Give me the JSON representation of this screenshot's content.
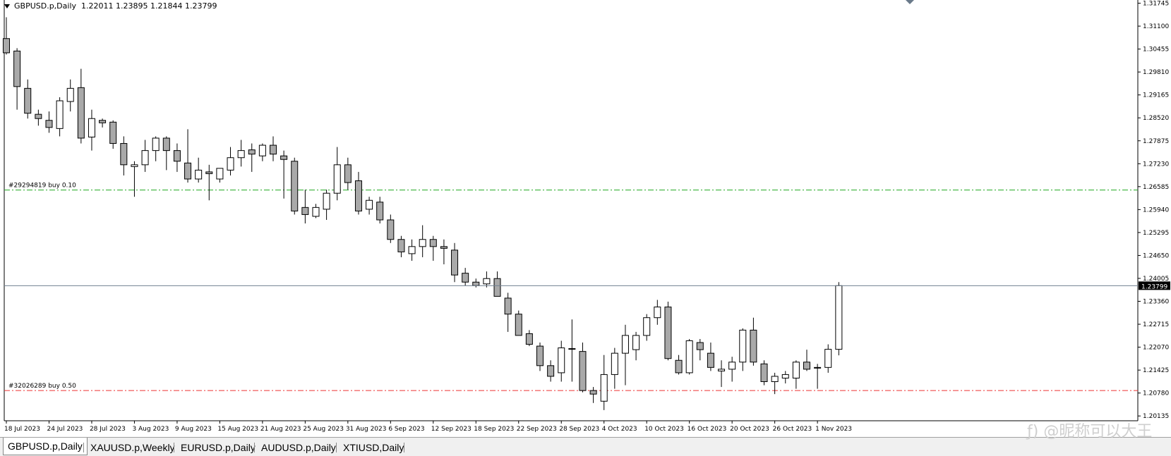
{
  "window": {
    "symbol_title": "GBPUSD.p,Daily",
    "ohlc_text": "1.22011 1.23895 1.21844 1.23799"
  },
  "price_axis": {
    "labels": [
      "1.31745",
      "1.31100",
      "1.30455",
      "1.29810",
      "1.29165",
      "1.28520",
      "1.27875",
      "1.27230",
      "1.26585",
      "1.25940",
      "1.25295",
      "1.24650",
      "1.24005",
      "1.23360",
      "1.22715",
      "1.22070",
      "1.21425",
      "1.20780",
      "1.20135"
    ],
    "current_price_label": "1.23799",
    "current_price_color": "#000000",
    "line_color": "#708090"
  },
  "time_axis": {
    "labels": [
      "18 Jul 2023",
      "24 Jul 2023",
      "28 Jul 2023",
      "3 Aug 2023",
      "9 Aug 2023",
      "15 Aug 2023",
      "21 Aug 2023",
      "25 Aug 2023",
      "31 Aug 2023",
      "6 Sep 2023",
      "12 Sep 2023",
      "18 Sep 2023",
      "22 Sep 2023",
      "28 Sep 2023",
      "4 Oct 2023",
      "10 Oct 2023",
      "16 Oct 2023",
      "20 Oct 2023",
      "26 Oct 2023",
      "1 Nov 2023"
    ]
  },
  "order_lines": [
    {
      "label": "#29294819 buy 0.10",
      "price": 1.2649,
      "color": "#22aa22"
    },
    {
      "label": "#32026289 buy 0.50",
      "price": 1.2085,
      "color": "#ee3333"
    }
  ],
  "chart_data": {
    "type": "candlestick",
    "title": "GBPUSD.p,Daily",
    "ylim": [
      1.2006,
      1.319
    ],
    "bull_color": "#ffffff",
    "bear_color": "#a9a9a9",
    "grid": false,
    "candles": [
      {
        "o": 1.3075,
        "h": 1.3135,
        "l": 1.303,
        "c": 1.3035
      },
      {
        "o": 1.304,
        "h": 1.3048,
        "l": 1.2875,
        "c": 1.294
      },
      {
        "o": 1.2935,
        "h": 1.296,
        "l": 1.285,
        "c": 1.2865
      },
      {
        "o": 1.2862,
        "h": 1.2875,
        "l": 1.283,
        "c": 1.285
      },
      {
        "o": 1.2845,
        "h": 1.287,
        "l": 1.281,
        "c": 1.2825
      },
      {
        "o": 1.2822,
        "h": 1.291,
        "l": 1.28,
        "c": 1.29
      },
      {
        "o": 1.2898,
        "h": 1.296,
        "l": 1.287,
        "c": 1.2935
      },
      {
        "o": 1.2937,
        "h": 1.299,
        "l": 1.278,
        "c": 1.2795
      },
      {
        "o": 1.2798,
        "h": 1.2875,
        "l": 1.276,
        "c": 1.285
      },
      {
        "o": 1.2845,
        "h": 1.285,
        "l": 1.2825,
        "c": 1.2838
      },
      {
        "o": 1.284,
        "h": 1.2845,
        "l": 1.2765,
        "c": 1.278
      },
      {
        "o": 1.278,
        "h": 1.28,
        "l": 1.269,
        "c": 1.272
      },
      {
        "o": 1.2715,
        "h": 1.273,
        "l": 1.263,
        "c": 1.272
      },
      {
        "o": 1.272,
        "h": 1.279,
        "l": 1.27,
        "c": 1.276
      },
      {
        "o": 1.276,
        "h": 1.28,
        "l": 1.273,
        "c": 1.2795
      },
      {
        "o": 1.2795,
        "h": 1.28,
        "l": 1.2705,
        "c": 1.276
      },
      {
        "o": 1.276,
        "h": 1.278,
        "l": 1.27,
        "c": 1.273
      },
      {
        "o": 1.2725,
        "h": 1.282,
        "l": 1.267,
        "c": 1.268
      },
      {
        "o": 1.268,
        "h": 1.274,
        "l": 1.267,
        "c": 1.2705
      },
      {
        "o": 1.27,
        "h": 1.272,
        "l": 1.262,
        "c": 1.2695
      },
      {
        "o": 1.268,
        "h": 1.271,
        "l": 1.267,
        "c": 1.271
      },
      {
        "o": 1.2705,
        "h": 1.277,
        "l": 1.269,
        "c": 1.274
      },
      {
        "o": 1.274,
        "h": 1.279,
        "l": 1.2715,
        "c": 1.276
      },
      {
        "o": 1.2762,
        "h": 1.278,
        "l": 1.27,
        "c": 1.275
      },
      {
        "o": 1.2745,
        "h": 1.278,
        "l": 1.273,
        "c": 1.2775
      },
      {
        "o": 1.2775,
        "h": 1.28,
        "l": 1.273,
        "c": 1.275
      },
      {
        "o": 1.2745,
        "h": 1.276,
        "l": 1.2625,
        "c": 1.2735
      },
      {
        "o": 1.273,
        "h": 1.274,
        "l": 1.258,
        "c": 1.259
      },
      {
        "o": 1.26,
        "h": 1.265,
        "l": 1.2555,
        "c": 1.258
      },
      {
        "o": 1.2575,
        "h": 1.261,
        "l": 1.257,
        "c": 1.26
      },
      {
        "o": 1.2595,
        "h": 1.265,
        "l": 1.2565,
        "c": 1.264
      },
      {
        "o": 1.264,
        "h": 1.277,
        "l": 1.262,
        "c": 1.272
      },
      {
        "o": 1.272,
        "h": 1.274,
        "l": 1.265,
        "c": 1.267
      },
      {
        "o": 1.2675,
        "h": 1.27,
        "l": 1.258,
        "c": 1.259
      },
      {
        "o": 1.2595,
        "h": 1.263,
        "l": 1.258,
        "c": 1.262
      },
      {
        "o": 1.2615,
        "h": 1.263,
        "l": 1.2555,
        "c": 1.2565
      },
      {
        "o": 1.2565,
        "h": 1.258,
        "l": 1.25,
        "c": 1.251
      },
      {
        "o": 1.251,
        "h": 1.252,
        "l": 1.246,
        "c": 1.2475
      },
      {
        "o": 1.247,
        "h": 1.251,
        "l": 1.245,
        "c": 1.249
      },
      {
        "o": 1.249,
        "h": 1.255,
        "l": 1.246,
        "c": 1.251
      },
      {
        "o": 1.251,
        "h": 1.252,
        "l": 1.245,
        "c": 1.249
      },
      {
        "o": 1.249,
        "h": 1.251,
        "l": 1.244,
        "c": 1.2485
      },
      {
        "o": 1.248,
        "h": 1.25,
        "l": 1.239,
        "c": 1.241
      },
      {
        "o": 1.2415,
        "h": 1.243,
        "l": 1.238,
        "c": 1.239
      },
      {
        "o": 1.239,
        "h": 1.24,
        "l": 1.2375,
        "c": 1.238
      },
      {
        "o": 1.2385,
        "h": 1.242,
        "l": 1.2375,
        "c": 1.24
      },
      {
        "o": 1.24,
        "h": 1.242,
        "l": 1.235,
        "c": 1.235
      },
      {
        "o": 1.2345,
        "h": 1.236,
        "l": 1.225,
        "c": 1.23
      },
      {
        "o": 1.23,
        "h": 1.231,
        "l": 1.224,
        "c": 1.224
      },
      {
        "o": 1.2245,
        "h": 1.2255,
        "l": 1.221,
        "c": 1.2215
      },
      {
        "o": 1.221,
        "h": 1.222,
        "l": 1.214,
        "c": 1.2155
      },
      {
        "o": 1.2155,
        "h": 1.217,
        "l": 1.211,
        "c": 1.2125
      },
      {
        "o": 1.2135,
        "h": 1.2225,
        "l": 1.211,
        "c": 1.2205
      },
      {
        "o": 1.2203,
        "h": 1.2285,
        "l": 1.211,
        "c": 1.2203
      },
      {
        "o": 1.2195,
        "h": 1.222,
        "l": 1.208,
        "c": 1.2085
      },
      {
        "o": 1.2085,
        "h": 1.2095,
        "l": 1.205,
        "c": 1.2075
      },
      {
        "o": 1.2055,
        "h": 1.2185,
        "l": 1.203,
        "c": 1.213
      },
      {
        "o": 1.213,
        "h": 1.2205,
        "l": 1.209,
        "c": 1.219
      },
      {
        "o": 1.219,
        "h": 1.227,
        "l": 1.21,
        "c": 1.224
      },
      {
        "o": 1.22,
        "h": 1.225,
        "l": 1.217,
        "c": 1.224
      },
      {
        "o": 1.224,
        "h": 1.23,
        "l": 1.2225,
        "c": 1.229
      },
      {
        "o": 1.229,
        "h": 1.234,
        "l": 1.227,
        "c": 1.232
      },
      {
        "o": 1.232,
        "h": 1.2335,
        "l": 1.217,
        "c": 1.2175
      },
      {
        "o": 1.217,
        "h": 1.2185,
        "l": 1.213,
        "c": 1.2135
      },
      {
        "o": 1.2135,
        "h": 1.223,
        "l": 1.213,
        "c": 1.2225
      },
      {
        "o": 1.222,
        "h": 1.223,
        "l": 1.217,
        "c": 1.22
      },
      {
        "o": 1.219,
        "h": 1.222,
        "l": 1.214,
        "c": 1.215
      },
      {
        "o": 1.214,
        "h": 1.217,
        "l": 1.2095,
        "c": 1.2145
      },
      {
        "o": 1.2145,
        "h": 1.218,
        "l": 1.211,
        "c": 1.2165
      },
      {
        "o": 1.2165,
        "h": 1.226,
        "l": 1.214,
        "c": 1.2255
      },
      {
        "o": 1.2255,
        "h": 1.229,
        "l": 1.2155,
        "c": 1.2165
      },
      {
        "o": 1.216,
        "h": 1.217,
        "l": 1.21,
        "c": 1.211
      },
      {
        "o": 1.211,
        "h": 1.2135,
        "l": 1.2075,
        "c": 1.2125
      },
      {
        "o": 1.212,
        "h": 1.214,
        "l": 1.2105,
        "c": 1.213
      },
      {
        "o": 1.212,
        "h": 1.217,
        "l": 1.209,
        "c": 1.2165
      },
      {
        "o": 1.2165,
        "h": 1.22,
        "l": 1.214,
        "c": 1.2145
      },
      {
        "o": 1.215,
        "h": 1.216,
        "l": 1.209,
        "c": 1.215
      },
      {
        "o": 1.215,
        "h": 1.2215,
        "l": 1.2135,
        "c": 1.2201
      },
      {
        "o": 1.2201,
        "h": 1.239,
        "l": 1.2184,
        "c": 1.238
      }
    ]
  },
  "tabs": [
    {
      "label": "GBPUSD.p,Daily",
      "active": true
    },
    {
      "label": "XAUUSD.p,Weekly",
      "active": false
    },
    {
      "label": "EURUSD.p,Daily",
      "active": false
    },
    {
      "label": "AUDUSD.p,Daily",
      "active": false
    },
    {
      "label": "XTIUSD,Daily",
      "active": false
    }
  ],
  "watermark": "ƒ) @昵称可以大王"
}
